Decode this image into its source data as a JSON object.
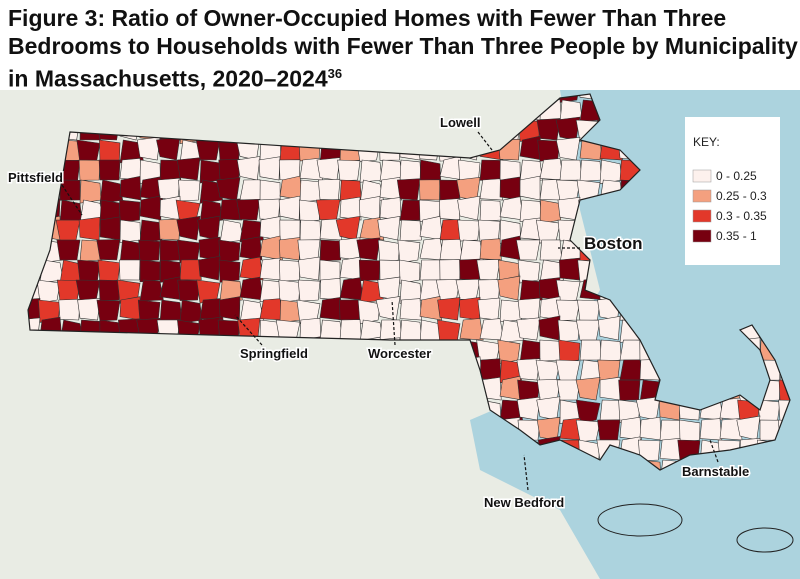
{
  "title": "Figure 3: Ratio of Owner-Occupied Homes with Fewer Than Three Bedrooms to Households with Fewer Than Three People by Municipality in Massachusetts, 2020–2024",
  "title_note": "36",
  "legend": {
    "title": "KEY:",
    "items": [
      {
        "label": "0 - 0.25",
        "color": "#fdf1ed"
      },
      {
        "label": "0.25 - 0.3",
        "color": "#f4a07f"
      },
      {
        "label": "0.3 - 0.35",
        "color": "#e2382a"
      },
      {
        "label": "0.35 - 1",
        "color": "#770010"
      }
    ]
  },
  "places": [
    "Pittsfield",
    "Lowell",
    "Boston",
    "Springfield",
    "Worcester",
    "New Bedford",
    "Barnstable"
  ]
}
